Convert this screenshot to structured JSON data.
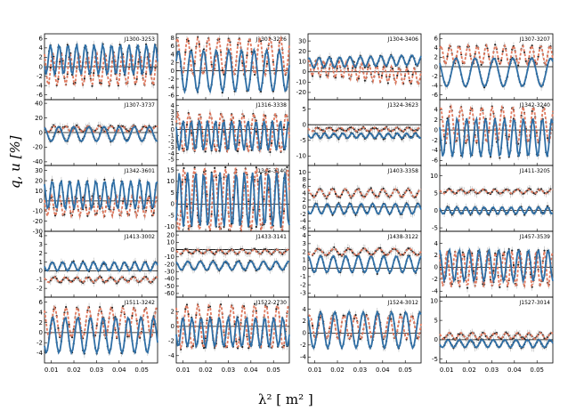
{
  "chart_data": {
    "type": "scatter",
    "title": "",
    "xlabel": "λ² [ m² ]",
    "ylabel": "q, u [%]",
    "xlim": [
      0.007,
      0.057
    ],
    "x_ticks": [
      "0.01",
      "0.02",
      "0.03",
      "0.04",
      "0.05"
    ],
    "series_colors": {
      "q": "#e07a5f",
      "u": "#2f6fa6",
      "points": "#222222",
      "errorbars": "#b8b8b8"
    },
    "panels": [
      {
        "label": "J1300-3253",
        "ylim": [
          -7,
          7
        ],
        "yticks": [
          "-6",
          "-4",
          "-2",
          "0",
          "2",
          "4",
          "6"
        ],
        "q": {
          "a": 3.5,
          "f": 26,
          "p": 0.6,
          "o": -0.5,
          "t": 0
        },
        "u": {
          "a": 3.2,
          "f": 26,
          "p": 2.2,
          "o": 1.5,
          "t": 0
        }
      },
      {
        "label": "J1301-3226",
        "ylim": [
          -7,
          9
        ],
        "yticks": [
          "-6",
          "-4",
          "-2",
          "0",
          "2",
          "4",
          "6",
          "8"
        ],
        "q": {
          "a": 4.5,
          "f": 22,
          "p": -1.2,
          "o": 3.5,
          "t": 0
        },
        "u": {
          "a": 5.0,
          "f": 18,
          "p": -2.4,
          "o": 0,
          "t": 0
        }
      },
      {
        "label": "J1304-3406",
        "ylim": [
          -27,
          37
        ],
        "yticks": [
          "-20",
          "-10",
          "0",
          "10",
          "20",
          "30"
        ],
        "q": {
          "a": 8,
          "f": 30,
          "p": 0.5,
          "o": 0,
          "t": -180
        },
        "u": {
          "a": 5,
          "f": 22,
          "p": -1.0,
          "o": 10,
          "t": 60
        }
      },
      {
        "label": "J1307-3207",
        "ylim": [
          -7,
          7
        ],
        "yticks": [
          "-6",
          "-4",
          "-2",
          "0",
          "2",
          "4",
          "6"
        ],
        "q": {
          "a": 2.0,
          "f": 25,
          "p": -0.8,
          "o": 2.5,
          "t": 0
        },
        "u": {
          "a": 3.0,
          "f": 12,
          "p": -1.6,
          "o": -1.2,
          "t": 0
        }
      },
      {
        "label": "J1307-3737",
        "ylim": [
          -45,
          45
        ],
        "yticks": [
          "-40",
          "-20",
          "0",
          "20",
          "40"
        ],
        "q": {
          "a": 4,
          "f": 20,
          "p": 0,
          "o": 5,
          "t": 0
        },
        "u": {
          "a": 10,
          "f": 15,
          "p": -1.5,
          "o": -2,
          "t": 0
        }
      },
      {
        "label": "J1316-3338",
        "ylim": [
          -6,
          5
        ],
        "yticks": [
          "-5",
          "-4",
          "-3",
          "-2",
          "-1",
          "0",
          "1",
          "2",
          "3",
          "4"
        ],
        "q": {
          "a": 3.2,
          "f": 21,
          "p": -1.8,
          "o": -0.5,
          "t": 0
        },
        "u": {
          "a": 2.5,
          "f": 28,
          "p": 1.5,
          "o": -1.0,
          "t": 0
        }
      },
      {
        "label": "J1324-3623",
        "ylim": [
          -13,
          8
        ],
        "yticks": [
          "-10",
          "-5",
          "0",
          "5"
        ],
        "q": {
          "a": 0.6,
          "f": 20,
          "p": 0,
          "o": -1.5,
          "t": 0
        },
        "u": {
          "a": 0.8,
          "f": 25,
          "p": 1.0,
          "o": -3.5,
          "t": 0
        }
      },
      {
        "label": "J1342-3240",
        "ylim": [
          -7,
          6
        ],
        "yticks": [
          "-6",
          "-4",
          "-2",
          "0",
          "2",
          "4"
        ],
        "q": {
          "a": 3.6,
          "f": 22,
          "p": -1.0,
          "o": 1.0,
          "t": 0
        },
        "u": {
          "a": 3.8,
          "f": 24,
          "p": 0.8,
          "o": -1.5,
          "t": 0
        }
      },
      {
        "label": "J1342-3601",
        "ylim": [
          -30,
          35
        ],
        "yticks": [
          "-30",
          "-20",
          "-10",
          "0",
          "10",
          "20",
          "30"
        ],
        "q": {
          "a": 10,
          "f": 28,
          "p": 1.5,
          "o": -5,
          "t": 0
        },
        "u": {
          "a": 14,
          "f": 26,
          "p": 0.9,
          "o": 6,
          "t": 0
        }
      },
      {
        "label": "J1345-3140",
        "ylim": [
          -12,
          17
        ],
        "yticks": [
          "-10",
          "-5",
          "0",
          "5",
          "10",
          "15"
        ],
        "q": {
          "a": 14,
          "f": 22,
          "p": 1.0,
          "o": 2,
          "t": 0
        },
        "u": {
          "a": 12,
          "f": 28,
          "p": -1.9,
          "o": 2,
          "t": 0
        }
      },
      {
        "label": "J1403-3358",
        "ylim": [
          -7,
          12
        ],
        "yticks": [
          "-6",
          "-4",
          "-2",
          "0",
          "2",
          "4",
          "6",
          "8",
          "10"
        ],
        "q": {
          "a": 1.2,
          "f": 18,
          "p": -1.0,
          "o": 4.0,
          "t": 0
        },
        "u": {
          "a": 1.5,
          "f": 20,
          "p": 1.0,
          "o": -0.5,
          "t": 0
        }
      },
      {
        "label": "J1411-3205",
        "ylim": [
          -6,
          13
        ],
        "yticks": [
          "-5",
          "0",
          "5",
          "10"
        ],
        "q": {
          "a": 0.6,
          "f": 20,
          "p": 0,
          "o": 5.5,
          "t": 0
        },
        "u": {
          "a": 1.0,
          "f": 25,
          "p": 0.8,
          "o": 0,
          "t": 0
        }
      },
      {
        "label": "J1413-3002",
        "ylim": [
          -3,
          4.5
        ],
        "yticks": [
          "-2",
          "-1",
          "0",
          "1",
          "2",
          "3",
          "4"
        ],
        "q": {
          "a": 0.3,
          "f": 20,
          "p": 0,
          "o": -1.0,
          "t": 0
        },
        "u": {
          "a": 0.5,
          "f": 22,
          "p": 1.0,
          "o": 0.5,
          "t": 0
        }
      },
      {
        "label": "J1433-3141",
        "ylim": [
          -65,
          25
        ],
        "yticks": [
          "-60",
          "-50",
          "-40",
          "-30",
          "-20",
          "-10",
          "0",
          "10",
          "20"
        ],
        "q": {
          "a": 3,
          "f": 20,
          "p": 0,
          "o": -3,
          "t": 0
        },
        "u": {
          "a": 6,
          "f": 18,
          "p": -0.8,
          "o": -22,
          "t": 0
        }
      },
      {
        "label": "J1438-3122",
        "ylim": [
          -3.5,
          4.5
        ],
        "yticks": [
          "-3",
          "-2",
          "-1",
          "0",
          "1",
          "2",
          "3",
          "4"
        ],
        "q": {
          "a": 0.4,
          "f": 15,
          "p": 0,
          "o": 2.0,
          "t": 0
        },
        "u": {
          "a": 1.0,
          "f": 18,
          "p": -1.3,
          "o": 0.5,
          "t": 0
        }
      },
      {
        "label": "J1457-3539",
        "ylim": [
          -5,
          6
        ],
        "yticks": [
          "-4",
          "-2",
          "0",
          "2",
          "4"
        ],
        "q": {
          "a": 3.0,
          "f": 28,
          "p": 1.2,
          "o": -0.3,
          "t": 0
        },
        "u": {
          "a": 2.6,
          "f": 23,
          "p": -0.2,
          "o": 0.3,
          "t": 0
        }
      },
      {
        "label": "J1511-3242",
        "ylim": [
          -6,
          7
        ],
        "yticks": [
          "-4",
          "-2",
          "0",
          "2",
          "4",
          "6"
        ],
        "q": {
          "a": 3.0,
          "f": 20,
          "p": -0.3,
          "o": 2.0,
          "t": 0
        },
        "u": {
          "a": 3.5,
          "f": 18,
          "p": 0.9,
          "o": -0.5,
          "t": 0
        }
      },
      {
        "label": "J1522-2730",
        "ylim": [
          -5,
          4
        ],
        "yticks": [
          "-4",
          "-2",
          "0",
          "2"
        ],
        "q": {
          "a": 3.0,
          "f": 20,
          "p": -0.4,
          "o": 0,
          "t": 0
        },
        "u": {
          "a": 2.0,
          "f": 25,
          "p": 1.7,
          "o": -0.8,
          "t": 0
        }
      },
      {
        "label": "J1524-3012",
        "ylim": [
          -5,
          6
        ],
        "yticks": [
          "-4",
          "-2",
          "0",
          "2",
          "4"
        ],
        "q": {
          "a": 2.0,
          "f": 20,
          "p": -2.0,
          "o": 1.0,
          "t": 0
        },
        "u": {
          "a": 3.0,
          "f": 16,
          "p": -1.0,
          "o": 0.5,
          "t": 0
        }
      },
      {
        "label": "J1527-3014",
        "ylim": [
          -6,
          11
        ],
        "yticks": [
          "-5",
          "0",
          "5",
          "10"
        ],
        "q": {
          "a": 0.8,
          "f": 20,
          "p": 0,
          "o": 1.0,
          "t": 0
        },
        "u": {
          "a": 1.0,
          "f": 20,
          "p": 0.8,
          "o": -1.0,
          "t": 0
        }
      }
    ]
  }
}
